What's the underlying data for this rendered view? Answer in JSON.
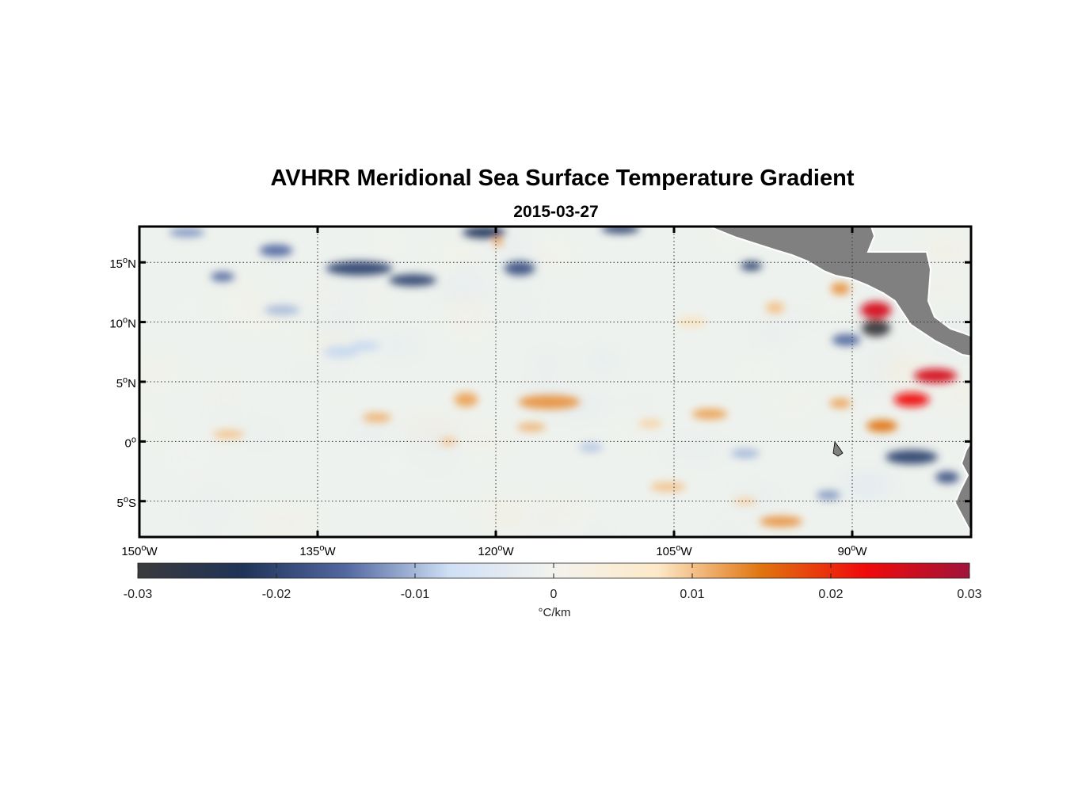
{
  "title": "AVHRR Meridional Sea Surface Temperature Gradient",
  "subtitle": "2015-03-27",
  "map": {
    "lon_range": [
      -150,
      -80
    ],
    "lat_range": [
      -8,
      18
    ],
    "lon_ticks": [
      {
        "value": -150,
        "deg": "150",
        "hemi": "W"
      },
      {
        "value": -135,
        "deg": "135",
        "hemi": "W"
      },
      {
        "value": -120,
        "deg": "120",
        "hemi": "W"
      },
      {
        "value": -105,
        "deg": "105",
        "hemi": "W"
      },
      {
        "value": -90,
        "deg": "90",
        "hemi": "W"
      }
    ],
    "lat_ticks": [
      {
        "value": 15,
        "deg": "15",
        "hemi": "N"
      },
      {
        "value": 10,
        "deg": "10",
        "hemi": "N"
      },
      {
        "value": 5,
        "deg": "5",
        "hemi": "N"
      },
      {
        "value": 0,
        "deg": "0",
        "hemi": ""
      },
      {
        "value": -5,
        "deg": "5",
        "hemi": "S"
      }
    ],
    "degree_symbol": "o",
    "gridlines": true,
    "land_color": "#808080",
    "features": [
      {
        "lon": -138.5,
        "lat": 16.0,
        "v": -0.015,
        "rx": 1.4,
        "ry": 0.5
      },
      {
        "lon": -131.5,
        "lat": 14.5,
        "v": -0.02,
        "rx": 2.8,
        "ry": 0.6
      },
      {
        "lon": -127.0,
        "lat": 13.5,
        "v": -0.02,
        "rx": 2.0,
        "ry": 0.5
      },
      {
        "lon": -143.0,
        "lat": 13.8,
        "v": -0.015,
        "rx": 1.0,
        "ry": 0.4
      },
      {
        "lon": -121.0,
        "lat": 17.5,
        "v": -0.022,
        "rx": 1.8,
        "ry": 0.5
      },
      {
        "lon": -118.0,
        "lat": 14.5,
        "v": -0.018,
        "rx": 1.3,
        "ry": 0.6
      },
      {
        "lon": -109.5,
        "lat": 17.8,
        "v": -0.02,
        "rx": 1.6,
        "ry": 0.4
      },
      {
        "lon": -146.0,
        "lat": 17.5,
        "v": -0.012,
        "rx": 1.5,
        "ry": 0.4
      },
      {
        "lon": -138.0,
        "lat": 11.0,
        "v": -0.01,
        "rx": 1.5,
        "ry": 0.4
      },
      {
        "lon": -131.0,
        "lat": 8.0,
        "v": -0.008,
        "rx": 1.2,
        "ry": 0.4
      },
      {
        "lon": -119.8,
        "lat": 16.7,
        "v": 0.012,
        "rx": 0.4,
        "ry": 0.35
      },
      {
        "lon": -98.5,
        "lat": 14.7,
        "v": -0.02,
        "rx": 0.9,
        "ry": 0.4
      },
      {
        "lon": -91.0,
        "lat": 12.8,
        "v": 0.013,
        "rx": 0.8,
        "ry": 0.5
      },
      {
        "lon": -88.0,
        "lat": 11.0,
        "v": 0.025,
        "rx": 1.3,
        "ry": 0.7
      },
      {
        "lon": -88.0,
        "lat": 9.5,
        "v": -0.03,
        "rx": 1.2,
        "ry": 0.7
      },
      {
        "lon": -96.5,
        "lat": 11.2,
        "v": 0.01,
        "rx": 0.8,
        "ry": 0.5
      },
      {
        "lon": -103.5,
        "lat": 10.0,
        "v": 0.008,
        "rx": 1.2,
        "ry": 0.4
      },
      {
        "lon": -90.5,
        "lat": 8.5,
        "v": -0.015,
        "rx": 1.2,
        "ry": 0.5
      },
      {
        "lon": -83.0,
        "lat": 5.5,
        "v": 0.025,
        "rx": 1.8,
        "ry": 0.6
      },
      {
        "lon": -85.0,
        "lat": 3.5,
        "v": 0.022,
        "rx": 1.5,
        "ry": 0.6
      },
      {
        "lon": -87.5,
        "lat": 1.3,
        "v": 0.015,
        "rx": 1.3,
        "ry": 0.5
      },
      {
        "lon": -91.0,
        "lat": 3.2,
        "v": 0.012,
        "rx": 0.9,
        "ry": 0.4
      },
      {
        "lon": -115.5,
        "lat": 3.3,
        "v": 0.013,
        "rx": 2.6,
        "ry": 0.6
      },
      {
        "lon": -122.5,
        "lat": 3.5,
        "v": 0.012,
        "rx": 1.0,
        "ry": 0.6
      },
      {
        "lon": -117.0,
        "lat": 1.2,
        "v": 0.011,
        "rx": 1.2,
        "ry": 0.35
      },
      {
        "lon": -102.0,
        "lat": 2.3,
        "v": 0.012,
        "rx": 1.5,
        "ry": 0.45
      },
      {
        "lon": -107.0,
        "lat": 1.5,
        "v": 0.009,
        "rx": 1.0,
        "ry": 0.35
      },
      {
        "lon": -130.0,
        "lat": 2.0,
        "v": 0.011,
        "rx": 1.2,
        "ry": 0.4
      },
      {
        "lon": -142.5,
        "lat": 0.6,
        "v": 0.01,
        "rx": 1.3,
        "ry": 0.35
      },
      {
        "lon": -124.0,
        "lat": 0.0,
        "v": 0.01,
        "rx": 0.7,
        "ry": 0.3
      },
      {
        "lon": -96.0,
        "lat": -6.7,
        "v": 0.013,
        "rx": 1.8,
        "ry": 0.45
      },
      {
        "lon": -105.5,
        "lat": -3.8,
        "v": 0.01,
        "rx": 1.5,
        "ry": 0.4
      },
      {
        "lon": -99.0,
        "lat": -5.0,
        "v": 0.009,
        "rx": 1.0,
        "ry": 0.3
      },
      {
        "lon": -85.0,
        "lat": -1.3,
        "v": -0.02,
        "rx": 2.2,
        "ry": 0.6
      },
      {
        "lon": -82.0,
        "lat": -3.0,
        "v": -0.018,
        "rx": 1.0,
        "ry": 0.5
      },
      {
        "lon": -92.0,
        "lat": -4.5,
        "v": -0.012,
        "rx": 1.0,
        "ry": 0.4
      },
      {
        "lon": -99.0,
        "lat": -1.0,
        "v": -0.01,
        "rx": 1.2,
        "ry": 0.4
      },
      {
        "lon": -112.0,
        "lat": -0.5,
        "v": -0.009,
        "rx": 1.0,
        "ry": 0.4
      },
      {
        "lon": -133.0,
        "lat": 7.5,
        "v": -0.008,
        "rx": 1.5,
        "ry": 0.5
      }
    ]
  },
  "colorbar": {
    "min": -0.03,
    "max": 0.03,
    "ticks": [
      "-0.03",
      "-0.02",
      "-0.01",
      "0",
      "0.01",
      "0.02",
      "0.03"
    ],
    "unit_label": "°C/km",
    "colors": [
      "#3a3a3c",
      "#1f3358",
      "#5268a0",
      "#cfe0f5",
      "#f3f3ee",
      "#fde9c8",
      "#e0740f",
      "#f00a0a",
      "#a0143a"
    ]
  }
}
